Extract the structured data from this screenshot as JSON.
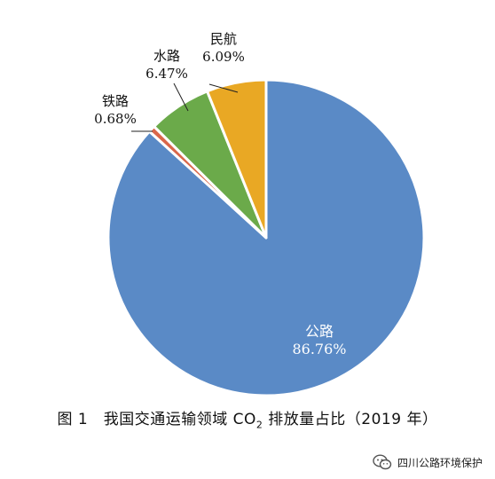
{
  "chart_data": {
    "type": "pie",
    "slices": [
      {
        "label": "公路",
        "value": 86.76,
        "value_label": "86.76%",
        "color": "#5A8AC6"
      },
      {
        "label": "铁路",
        "value": 0.68,
        "value_label": "0.68%",
        "color": "#D9664A"
      },
      {
        "label": "水路",
        "value": 6.47,
        "value_label": "6.47%",
        "color": "#6BAA4A"
      },
      {
        "label": "民航",
        "value": 6.09,
        "value_label": "6.09%",
        "color": "#E9A824"
      }
    ],
    "start": "12 o'clock",
    "direction": "clockwise",
    "legend": "none"
  },
  "caption": {
    "prefix": "图 1　我国交通运输领域 CO",
    "subscript": "2",
    "suffix": " 排放量占比（2019 年）"
  },
  "watermark": {
    "text": "四川公路环境保护",
    "icon": "wechat-icon"
  }
}
